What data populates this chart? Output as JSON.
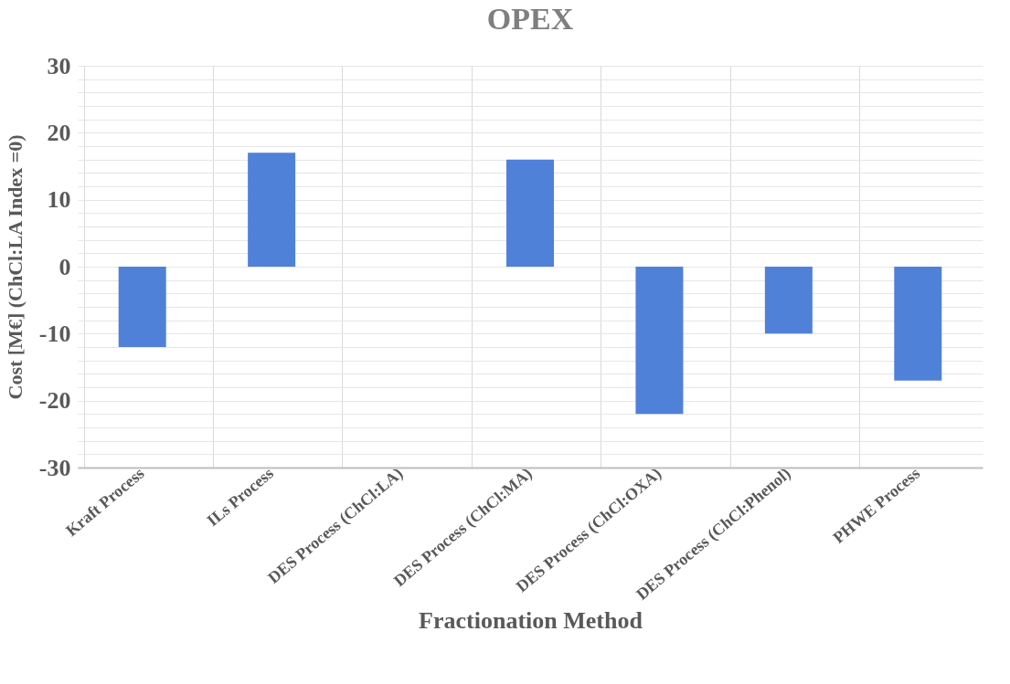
{
  "chart_data": {
    "type": "bar",
    "title": "OPEX",
    "xlabel": "Fractionation Method",
    "ylabel": "Cost [M€] (ChCl:LA Index =0)",
    "categories": [
      "Kraft Process",
      "ILs Process",
      "DES Process (ChCl:LA)",
      "DES Process (ChCl:MA)",
      "DES Process (ChCl:OXA)",
      "DES Process (ChCl:Phenol)",
      "PHWE Process"
    ],
    "values": [
      -12,
      17,
      0,
      16,
      -22,
      -10,
      -17
    ],
    "color": "#4f81d9",
    "ylim": [
      -30,
      30
    ],
    "yticks": [
      -30,
      {
        "value": -28,
        "label": null
      },
      {
        "value": -26,
        "label": null
      },
      {
        "value": -24,
        "label": null
      },
      {
        "value": -22,
        "label": null
      },
      -20,
      {
        "value": -18,
        "label": null
      },
      {
        "value": -16,
        "label": null
      },
      {
        "value": -14,
        "label": null
      },
      {
        "value": -12,
        "label": null
      },
      -10,
      {
        "value": -8,
        "label": null
      },
      {
        "value": -6,
        "label": null
      },
      {
        "value": -4,
        "label": null
      },
      {
        "value": -2,
        "label": null
      },
      0,
      {
        "value": 2,
        "label": null
      },
      {
        "value": 4,
        "label": null
      },
      {
        "value": 6,
        "label": null
      },
      {
        "value": 8,
        "label": null
      },
      10,
      {
        "value": 12,
        "label": null
      },
      {
        "value": 14,
        "label": null
      },
      {
        "value": 16,
        "label": null
      },
      {
        "value": 18,
        "label": null
      },
      20,
      {
        "value": 22,
        "label": null
      },
      {
        "value": 24,
        "label": null
      },
      {
        "value": 26,
        "label": null
      },
      {
        "value": 28,
        "label": null
      },
      30
    ],
    "grid": true
  }
}
